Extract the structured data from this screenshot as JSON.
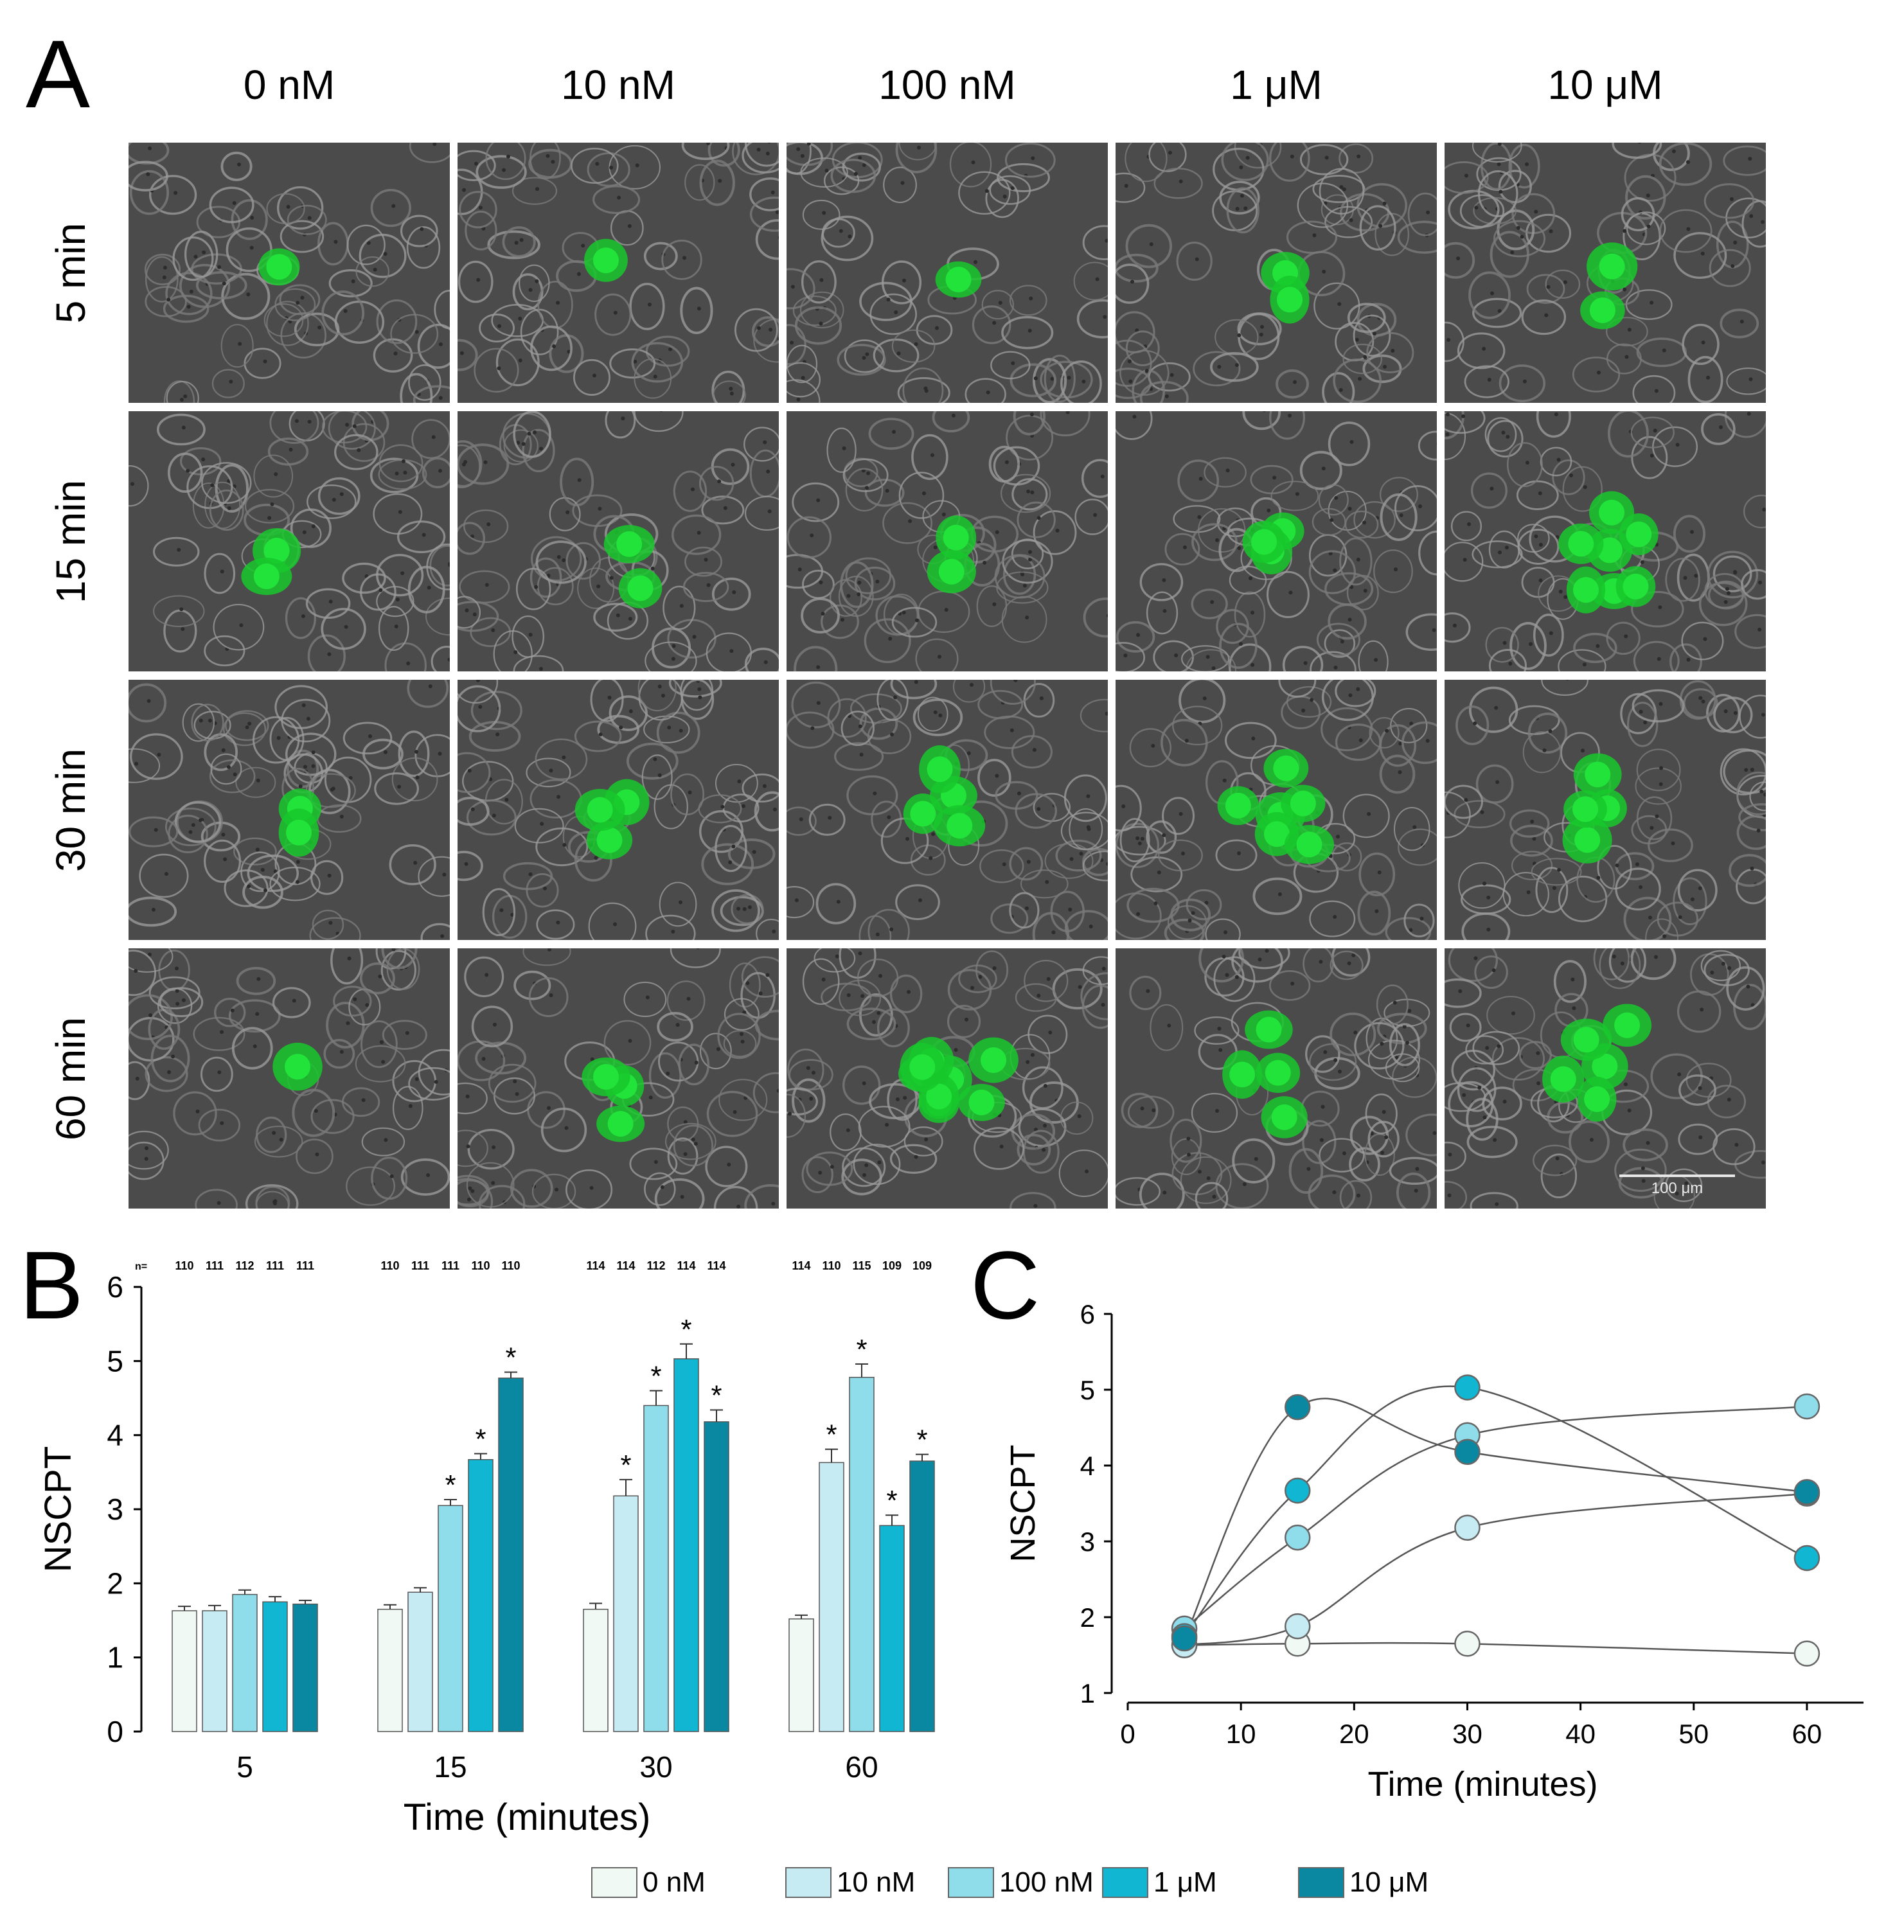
{
  "panels": {
    "a": "A",
    "b": "B",
    "c": "C"
  },
  "concentrations": [
    "0 nM",
    "10 nM",
    "100  nM",
    "1 μM",
    "10 μM"
  ],
  "times": [
    "5 min",
    "15 min",
    "30 min",
    "60 min"
  ],
  "green_counts": [
    [
      1,
      1,
      1,
      2,
      2
    ],
    [
      2,
      2,
      2,
      3,
      7
    ],
    [
      2,
      3,
      4,
      6,
      4
    ],
    [
      1,
      3,
      8,
      4,
      5
    ]
  ],
  "scale_bar": "100 μm",
  "colors": {
    "c0": "#f1f9f5",
    "c1": "#c6ebf3",
    "c2": "#8fdcea",
    "c3": "#11b6d3",
    "c4": "#0b88a1",
    "cell": "#22e33a"
  },
  "chart_data": [
    {
      "type": "bar",
      "panel": "B",
      "categories": [
        "5",
        "15",
        "30",
        "60"
      ],
      "xlabel": "Time (minutes)",
      "ylabel": "NSCPT",
      "ylim": [
        0,
        6
      ],
      "yticks": [
        "0",
        "1",
        "2",
        "3",
        "4",
        "5",
        "6"
      ],
      "n_label": "n=",
      "n_values": [
        [
          "110",
          "111",
          "112",
          "111",
          "111"
        ],
        [
          "110",
          "111",
          "111",
          "110",
          "110"
        ],
        [
          "114",
          "114",
          "112",
          "114",
          "114"
        ],
        [
          "114",
          "110",
          "115",
          "109",
          "109"
        ]
      ],
      "series": [
        {
          "name": "0 nM",
          "values": [
            1.63,
            1.65,
            1.65,
            1.52
          ],
          "errors": [
            0.06,
            0.06,
            0.08,
            0.05
          ],
          "sig": [
            false,
            false,
            false,
            false
          ]
        },
        {
          "name": "10 nM",
          "values": [
            1.63,
            1.88,
            3.18,
            3.63
          ],
          "errors": [
            0.07,
            0.06,
            0.22,
            0.18
          ],
          "sig": [
            false,
            false,
            true,
            true
          ]
        },
        {
          "name": "100 nM",
          "values": [
            1.85,
            3.05,
            4.4,
            4.78
          ],
          "errors": [
            0.06,
            0.08,
            0.2,
            0.18
          ],
          "sig": [
            false,
            true,
            true,
            true
          ]
        },
        {
          "name": "1 μM",
          "values": [
            1.75,
            3.67,
            5.03,
            2.78
          ],
          "errors": [
            0.07,
            0.08,
            0.2,
            0.14
          ],
          "sig": [
            false,
            true,
            true,
            true
          ]
        },
        {
          "name": "10 μM",
          "values": [
            1.72,
            4.77,
            4.18,
            3.65
          ],
          "errors": [
            0.05,
            0.08,
            0.16,
            0.09
          ],
          "sig": [
            false,
            true,
            true,
            true
          ]
        }
      ],
      "sig_symbol": "*"
    },
    {
      "type": "line",
      "panel": "C",
      "x": [
        5,
        15,
        30,
        60
      ],
      "xlabel": "Time (minutes)",
      "ylabel": "NSCPT",
      "xlim": [
        0,
        65
      ],
      "ylim": [
        1,
        6
      ],
      "xticks": [
        "0",
        "10",
        "20",
        "30",
        "40",
        "50",
        "60"
      ],
      "yticks": [
        "1",
        "2",
        "3",
        "4",
        "5",
        "6"
      ],
      "series": [
        {
          "name": "0 nM",
          "values": [
            1.63,
            1.65,
            1.65,
            1.52
          ]
        },
        {
          "name": "10 nM",
          "values": [
            1.63,
            1.88,
            3.18,
            3.63
          ]
        },
        {
          "name": "100 nM",
          "values": [
            1.85,
            3.05,
            4.4,
            4.78
          ]
        },
        {
          "name": "1 μM",
          "values": [
            1.75,
            3.67,
            5.03,
            2.78
          ]
        },
        {
          "name": "10 μM",
          "values": [
            1.72,
            4.77,
            4.18,
            3.65
          ]
        }
      ]
    }
  ],
  "legend": [
    "0 nM",
    "10 nM",
    "100 nM",
    "1 μM",
    "10 μM"
  ]
}
